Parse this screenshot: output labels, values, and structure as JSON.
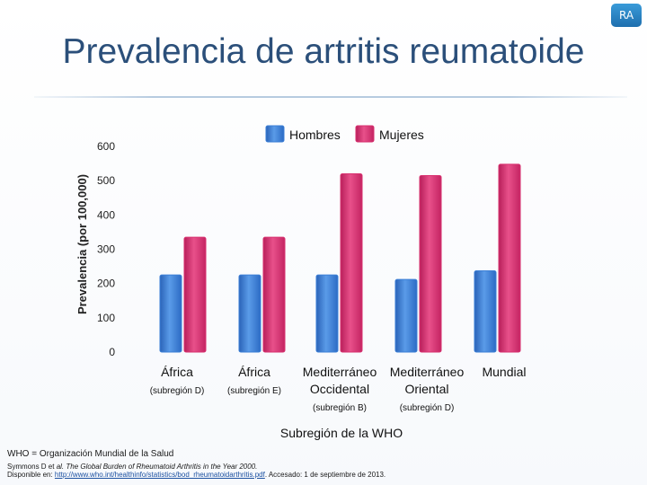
{
  "badge": "RA",
  "title": "Prevalencia de artritis reumatoide",
  "colors": {
    "men": "#3b7fd6",
    "women": "#d8306f"
  },
  "chart_data": {
    "type": "bar",
    "ylabel": "Prevalencia (por 100,000)",
    "xlabel": "Subregión de la WHO",
    "ylim": [
      0,
      600
    ],
    "yticks": [
      "0",
      "100",
      "200",
      "300",
      "400",
      "500",
      "600"
    ],
    "legend_placement": "top",
    "grid": false,
    "categories": [
      {
        "line1": "África",
        "line2": "(subregión D)"
      },
      {
        "line1": "África",
        "line2": "(subregión E)"
      },
      {
        "line1": "Mediterráneo",
        "line2": "Occidental",
        "line3": "(subregión B)"
      },
      {
        "line1": "Mediterráneo",
        "line2": "Oriental",
        "line3": "(subregión D)"
      },
      {
        "line1": "Mundial"
      }
    ],
    "series": [
      {
        "name": "Hombres",
        "values": [
          225,
          225,
          225,
          212,
          237
        ]
      },
      {
        "name": "Mujeres",
        "values": [
          335,
          335,
          520,
          515,
          548
        ]
      }
    ]
  },
  "footer": {
    "who_note": "WHO = Organización Mundial de la Salud",
    "ref_prefix": "Symmons D et ",
    "ref_al": "al.",
    "ref_title": " The Global Burden of Rheumatoid Arthritis in the Year 2000.",
    "avail_prefix": "Disponible en: ",
    "avail_url": "http://www.who.int/healthinfo/statistics/bod_rheumatoidarthritis.pdf",
    "avail_suffix": ". Accesado: 1 de septiembre de 2013."
  }
}
